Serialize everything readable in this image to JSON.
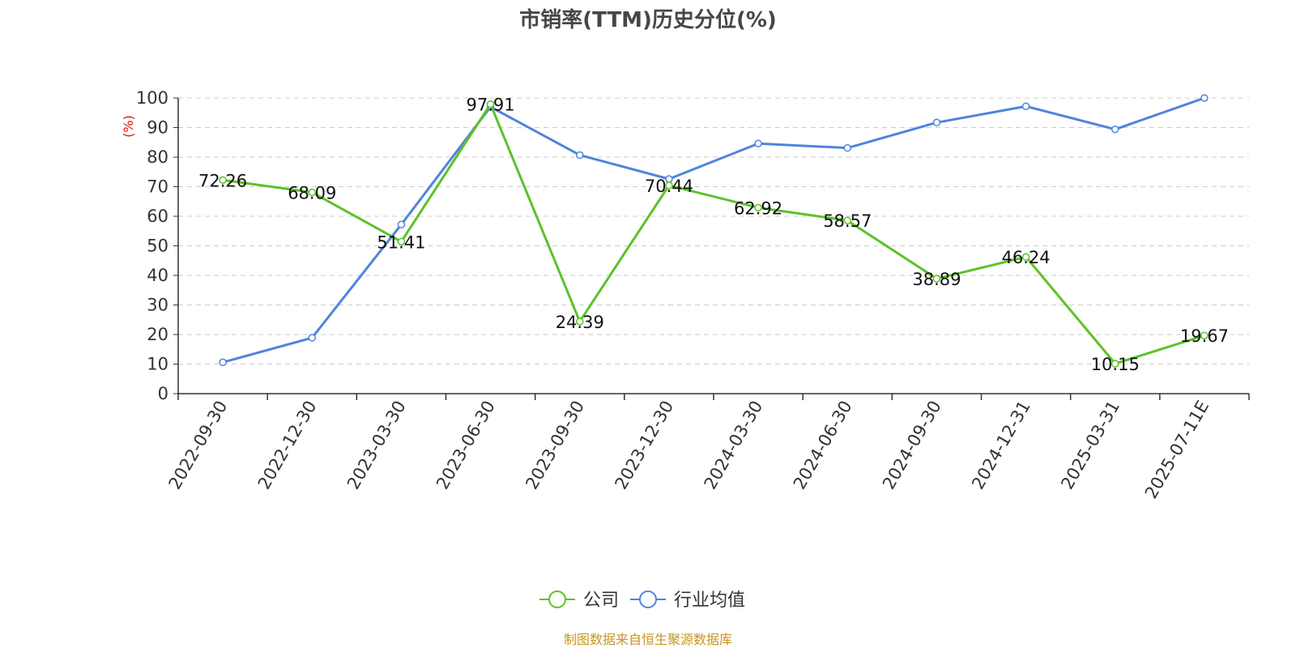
{
  "chart_data": {
    "type": "line",
    "title": "市销率(TTM)历史分位(%)",
    "ylabel": "(%)",
    "ylim": [
      0,
      100
    ],
    "yticks": [
      0,
      10,
      20,
      30,
      40,
      50,
      60,
      70,
      80,
      90,
      100
    ],
    "grid": true,
    "legend_position": "bottom",
    "categories": [
      "2022-09-30",
      "2022-12-30",
      "2023-03-30",
      "2023-06-30",
      "2023-09-30",
      "2023-12-30",
      "2024-03-30",
      "2024-06-30",
      "2024-09-30",
      "2024-12-31",
      "2025-03-31",
      "2025-07-11E"
    ],
    "series": [
      {
        "name": "公司",
        "color": "#5cc22a",
        "show_labels": true,
        "values": [
          72.26,
          68.09,
          51.41,
          97.91,
          24.39,
          70.44,
          62.92,
          58.57,
          38.89,
          46.24,
          10.15,
          19.67
        ]
      },
      {
        "name": "行业均值",
        "color": "#4f84dc",
        "show_labels": false,
        "values": [
          10.6,
          18.9,
          57.2,
          97.0,
          80.7,
          72.6,
          84.6,
          83.1,
          91.7,
          97.2,
          89.4,
          100
        ]
      }
    ]
  },
  "source": "制图数据来自恒生聚源数据库"
}
